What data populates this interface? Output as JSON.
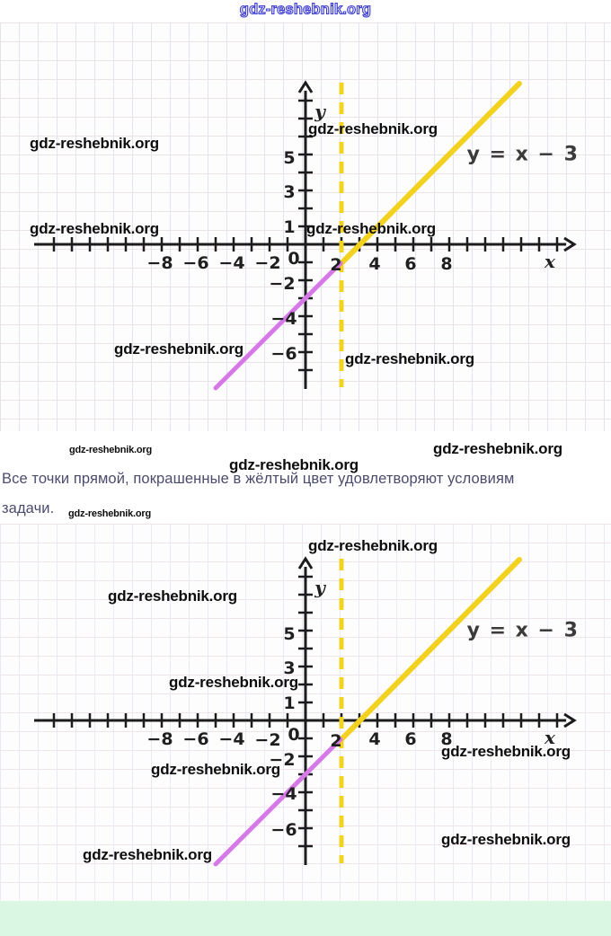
{
  "site_watermark": {
    "text": "gdz-reshebnik.org",
    "top_color": "#3c3cd0"
  },
  "note": {
    "line1": "Все точки прямой, покрашенные в жёлтый цвет удовлетворяют условиям",
    "line2": "задачи."
  },
  "graph": {
    "equation_label": "y = x − 3",
    "x_axis_label": "x",
    "y_axis_label": "y",
    "x_tick_labels_negative": [
      "−8",
      "−6",
      "−4",
      "−2"
    ],
    "origin_label": "0",
    "x_tick_labels_positive": [
      "2",
      "4",
      "6",
      "8"
    ],
    "y_tick_labels_positive": [
      "5",
      "3",
      "1"
    ],
    "y_tick_labels_negative": [
      "−2",
      "−4",
      "−6"
    ]
  },
  "colors": {
    "line_yellow": "#f2d21e",
    "line_dashed_yellow": "#f2d31f",
    "line_violet": "#d678e8",
    "axis_black": "#1c1c1c",
    "note_text": "#4b4b6e",
    "footer_green": "#d9f7e3",
    "grid_line": "#e4e4f0"
  },
  "chart_data": [
    {
      "type": "line",
      "position": "upper graph",
      "title": "y = x − 3",
      "xlabel": "x",
      "ylabel": "y",
      "xlim": [
        -15,
        15
      ],
      "ylim": [
        -9,
        9
      ],
      "grid": true,
      "x_tick_labels": [
        -8,
        -6,
        -4,
        -2,
        0,
        2,
        4,
        6,
        8
      ],
      "y_tick_labels": [
        5,
        3,
        1,
        -2,
        -4,
        -6
      ],
      "series": [
        {
          "name": "y = x − 3 for x ≥ 2 (yellow, satisfies the conditions)",
          "color": "#f2d21e",
          "style": "solid",
          "points": [
            [
              2,
              -1
            ],
            [
              12,
              9
            ]
          ]
        },
        {
          "name": "y = x − 3 for x < 2 (violet)",
          "color": "#d678e8",
          "style": "solid",
          "points": [
            [
              -5,
              -8
            ],
            [
              2,
              -1
            ]
          ]
        },
        {
          "name": "vertical boundary x = 2",
          "color": "#f2d31f",
          "style": "dashed",
          "points": [
            [
              2,
              -8
            ],
            [
              2,
              9
            ]
          ]
        }
      ]
    },
    {
      "type": "line",
      "position": "lower graph (identical copy)",
      "title": "y = x − 3",
      "xlabel": "x",
      "ylabel": "y",
      "xlim": [
        -15,
        15
      ],
      "ylim": [
        -9,
        9
      ],
      "grid": true,
      "x_tick_labels": [
        -8,
        -6,
        -4,
        -2,
        0,
        2,
        4,
        6,
        8
      ],
      "y_tick_labels": [
        5,
        3,
        1,
        -2,
        -4,
        -6
      ],
      "series": [
        {
          "name": "y = x − 3 for x ≥ 2 (yellow, satisfies the conditions)",
          "color": "#f2d21e",
          "style": "solid",
          "points": [
            [
              2,
              -1
            ],
            [
              12,
              9
            ]
          ]
        },
        {
          "name": "y = x − 3 for x < 2 (violet)",
          "color": "#d678e8",
          "style": "solid",
          "points": [
            [
              -5,
              -8
            ],
            [
              2,
              -1
            ]
          ]
        },
        {
          "name": "vertical boundary x = 2",
          "color": "#f2d31f",
          "style": "dashed",
          "points": [
            [
              2,
              -8
            ],
            [
              2,
              9
            ]
          ]
        }
      ]
    }
  ]
}
